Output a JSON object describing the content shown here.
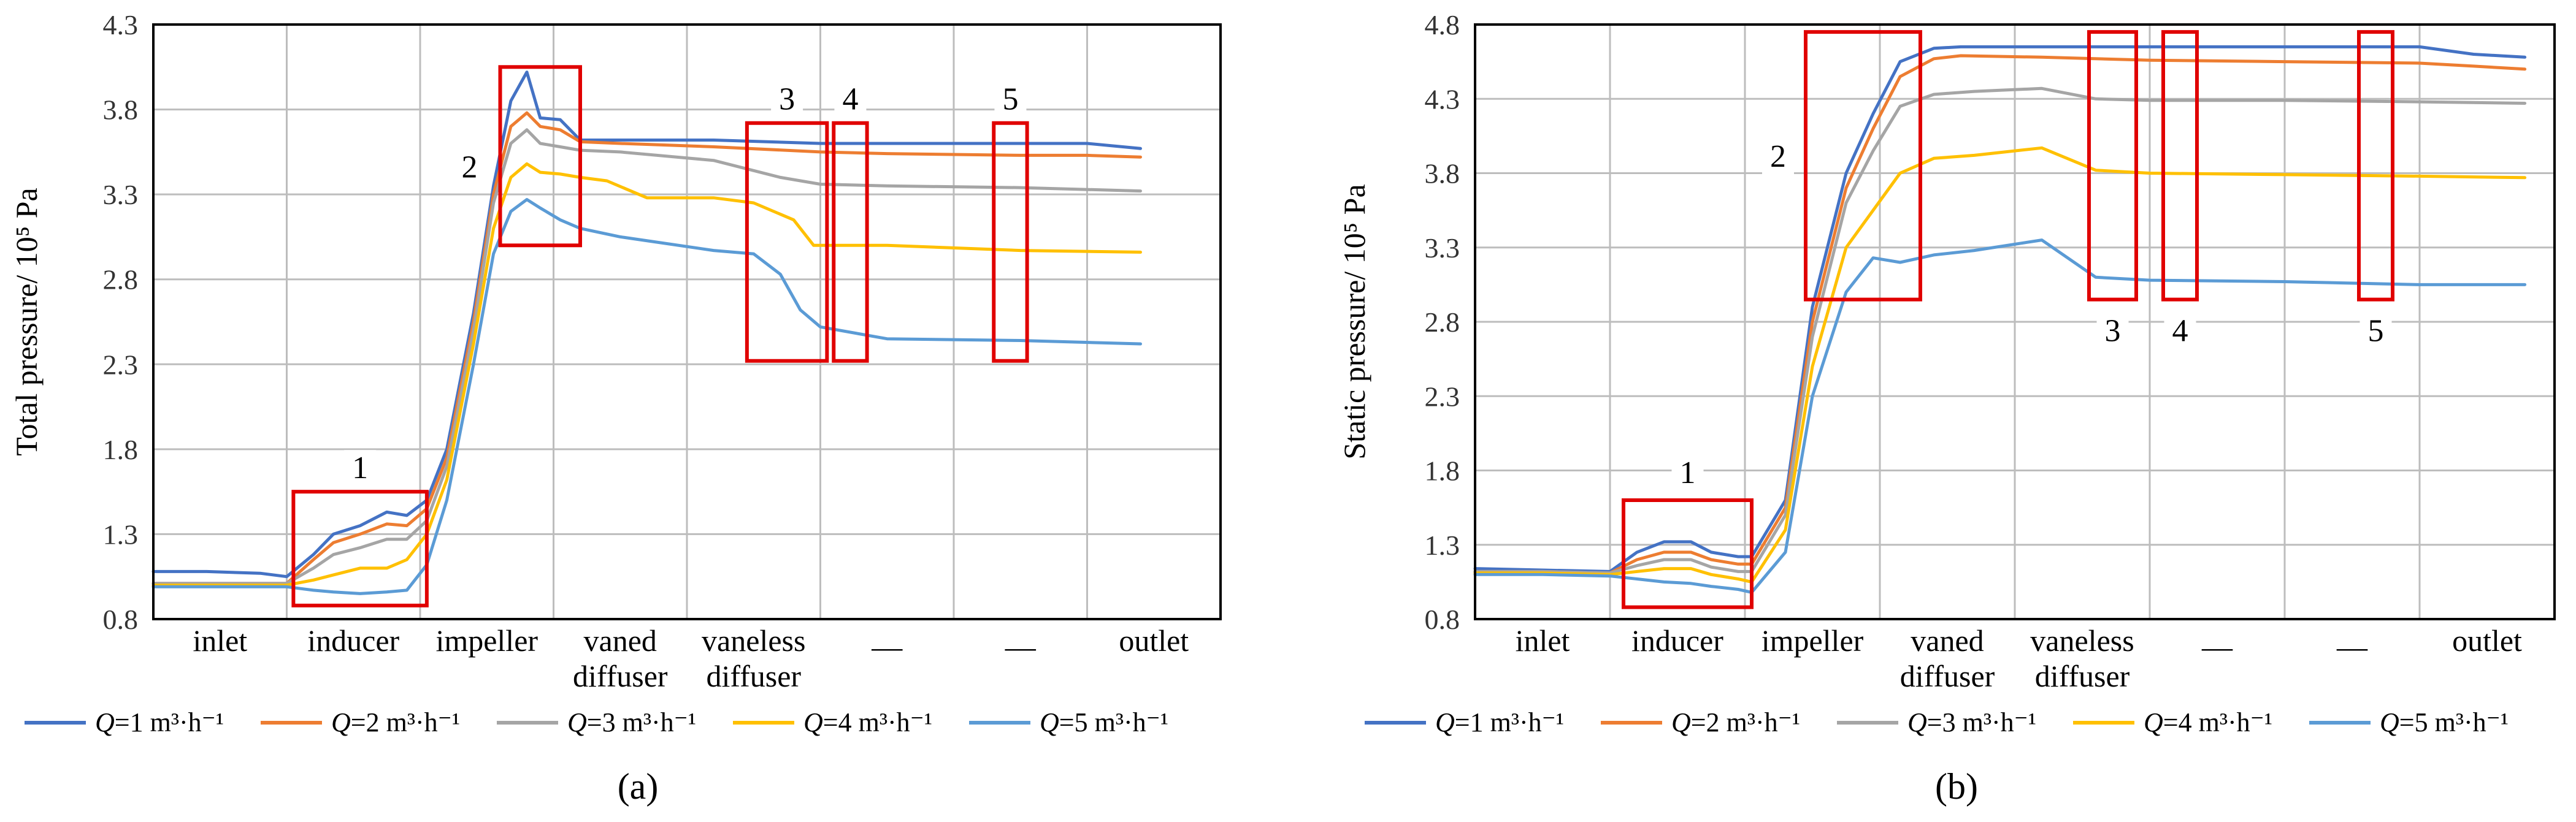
{
  "legend": {
    "entries": [
      {
        "var": "Q",
        "text": "=1 m³·h⁻¹"
      },
      {
        "var": "Q",
        "text": "=2 m³·h⁻¹"
      },
      {
        "var": "Q",
        "text": "=3 m³·h⁻¹"
      },
      {
        "var": "Q",
        "text": "=4 m³·h⁻¹"
      },
      {
        "var": "Q",
        "text": "=5 m³·h⁻¹"
      }
    ]
  },
  "chart_data": [
    {
      "type": "line",
      "panel_label": "(a)",
      "ylabel": "Total pressure/ 10⁵ Pa",
      "ylim": [
        0.8,
        4.3
      ],
      "yticks": [
        0.8,
        1.3,
        1.8,
        2.3,
        2.8,
        3.3,
        3.8,
        4.3
      ],
      "categories": [
        {
          "line1": "inlet",
          "line2": ""
        },
        {
          "line1": "inducer",
          "line2": ""
        },
        {
          "line1": "impeller",
          "line2": ""
        },
        {
          "line1": "vaned",
          "line2": "diffuser"
        },
        {
          "line1": "vaneless",
          "line2": "diffuser"
        },
        {
          "line1": "—",
          "line2": ""
        },
        {
          "line1": "—",
          "line2": ""
        },
        {
          "line1": "outlet",
          "line2": ""
        }
      ],
      "annotations": [
        {
          "label": "1",
          "x0": 1.05,
          "x1": 2.05,
          "y0": 0.88,
          "y1": 1.55
        },
        {
          "label": "2",
          "x0": 2.6,
          "x1": 3.2,
          "y0": 3.0,
          "y1": 4.05
        },
        {
          "label": "3",
          "x0": 4.45,
          "x1": 5.05,
          "y0": 2.32,
          "y1": 3.72
        },
        {
          "label": "4",
          "x0": 5.1,
          "x1": 5.35,
          "y0": 2.32,
          "y1": 3.72
        },
        {
          "label": "5",
          "x0": 6.3,
          "x1": 6.55,
          "y0": 2.32,
          "y1": 3.72
        }
      ],
      "series": [
        {
          "name": "Q=1 m³·h⁻¹",
          "color": "#4472c4",
          "x": [
            0,
            0.4,
            0.8,
            1.0,
            1.2,
            1.35,
            1.55,
            1.75,
            1.9,
            2.05,
            2.2,
            2.4,
            2.55,
            2.68,
            2.8,
            2.9,
            3.05,
            3.2,
            3.5,
            4.2,
            5.0,
            5.5,
            6.5,
            7.0,
            7.4
          ],
          "y": [
            1.08,
            1.08,
            1.07,
            1.05,
            1.18,
            1.3,
            1.35,
            1.43,
            1.41,
            1.5,
            1.8,
            2.6,
            3.35,
            3.85,
            4.02,
            3.75,
            3.74,
            3.62,
            3.62,
            3.62,
            3.6,
            3.6,
            3.6,
            3.6,
            3.57
          ]
        },
        {
          "name": "Q=2 m³·h⁻¹",
          "color": "#ed7d31",
          "x": [
            0,
            0.4,
            0.8,
            1.0,
            1.2,
            1.35,
            1.55,
            1.75,
            1.9,
            2.05,
            2.2,
            2.4,
            2.55,
            2.68,
            2.8,
            2.9,
            3.05,
            3.2,
            3.5,
            4.2,
            5.0,
            5.5,
            6.5,
            7.0,
            7.4
          ],
          "y": [
            1.01,
            1.01,
            1.01,
            1.01,
            1.15,
            1.25,
            1.3,
            1.36,
            1.35,
            1.45,
            1.75,
            2.55,
            3.3,
            3.7,
            3.78,
            3.7,
            3.68,
            3.61,
            3.6,
            3.58,
            3.55,
            3.54,
            3.53,
            3.53,
            3.52
          ]
        },
        {
          "name": "Q=3 m³·h⁻¹",
          "color": "#a5a5a5",
          "x": [
            0,
            0.4,
            0.8,
            1.0,
            1.2,
            1.35,
            1.55,
            1.75,
            1.9,
            2.05,
            2.2,
            2.4,
            2.55,
            2.68,
            2.8,
            2.9,
            3.05,
            3.2,
            3.5,
            4.2,
            4.7,
            5.0,
            5.5,
            6.5,
            7.4
          ],
          "y": [
            1.01,
            1.01,
            1.01,
            1.01,
            1.1,
            1.18,
            1.22,
            1.27,
            1.27,
            1.38,
            1.7,
            2.5,
            3.25,
            3.6,
            3.68,
            3.6,
            3.58,
            3.56,
            3.55,
            3.5,
            3.4,
            3.36,
            3.35,
            3.34,
            3.32
          ]
        },
        {
          "name": "Q=4 m³·h⁻¹",
          "color": "#ffc000",
          "x": [
            0,
            0.4,
            0.8,
            1.0,
            1.2,
            1.35,
            1.55,
            1.75,
            1.9,
            2.05,
            2.2,
            2.4,
            2.55,
            2.68,
            2.8,
            2.9,
            3.05,
            3.2,
            3.4,
            3.7,
            4.2,
            4.5,
            4.8,
            4.95,
            5.5,
            6.5,
            7.4
          ],
          "y": [
            1.0,
            1.0,
            1.0,
            1.0,
            1.03,
            1.06,
            1.1,
            1.1,
            1.15,
            1.3,
            1.62,
            2.42,
            3.1,
            3.4,
            3.48,
            3.43,
            3.42,
            3.4,
            3.38,
            3.28,
            3.28,
            3.25,
            3.15,
            3.0,
            3.0,
            2.97,
            2.96
          ]
        },
        {
          "name": "Q=5 m³·h⁻¹",
          "color": "#5b9bd5",
          "x": [
            0,
            0.4,
            0.8,
            1.0,
            1.2,
            1.35,
            1.55,
            1.75,
            1.9,
            2.05,
            2.2,
            2.4,
            2.55,
            2.68,
            2.8,
            2.9,
            3.05,
            3.2,
            3.5,
            4.2,
            4.5,
            4.7,
            4.85,
            5.0,
            5.5,
            6.5,
            7.4
          ],
          "y": [
            0.99,
            0.99,
            0.99,
            0.99,
            0.97,
            0.96,
            0.95,
            0.96,
            0.97,
            1.12,
            1.5,
            2.3,
            2.95,
            3.2,
            3.27,
            3.22,
            3.15,
            3.1,
            3.05,
            2.97,
            2.95,
            2.83,
            2.62,
            2.52,
            2.45,
            2.44,
            2.42
          ]
        }
      ]
    },
    {
      "type": "line",
      "panel_label": "(b)",
      "ylabel": "Static pressure/ 10⁵ Pa",
      "ylim": [
        0.8,
        4.8
      ],
      "yticks": [
        0.8,
        1.3,
        1.8,
        2.3,
        2.8,
        3.3,
        3.8,
        4.3,
        4.8
      ],
      "categories": [
        {
          "line1": "inlet",
          "line2": ""
        },
        {
          "line1": "inducer",
          "line2": ""
        },
        {
          "line1": "impeller",
          "line2": ""
        },
        {
          "line1": "vaned",
          "line2": "diffuser"
        },
        {
          "line1": "vaneless",
          "line2": "diffuser"
        },
        {
          "line1": "—",
          "line2": ""
        },
        {
          "line1": "—",
          "line2": ""
        },
        {
          "line1": "outlet",
          "line2": ""
        }
      ],
      "annotations": [
        {
          "label": "1",
          "x0": 1.1,
          "x1": 2.05,
          "y0": 0.88,
          "y1": 1.6
        },
        {
          "label": "2",
          "x0": 2.45,
          "x1": 3.3,
          "y0": 2.95,
          "y1": 4.75
        },
        {
          "label": "3",
          "x0": 4.55,
          "x1": 4.9,
          "y0": 2.95,
          "y1": 4.75
        },
        {
          "label": "4",
          "x0": 5.1,
          "x1": 5.35,
          "y0": 2.95,
          "y1": 4.75
        },
        {
          "label": "5",
          "x0": 6.55,
          "x1": 6.8,
          "y0": 2.95,
          "y1": 4.75
        }
      ],
      "series": [
        {
          "name": "Q=1 m³·h⁻¹",
          "color": "#4472c4",
          "x": [
            0,
            0.5,
            1.0,
            1.2,
            1.4,
            1.6,
            1.75,
            1.95,
            2.05,
            2.3,
            2.5,
            2.75,
            2.95,
            3.15,
            3.4,
            3.6,
            4.2,
            5.0,
            6.0,
            7.0,
            7.4,
            7.78
          ],
          "y": [
            1.14,
            1.13,
            1.12,
            1.25,
            1.32,
            1.32,
            1.25,
            1.22,
            1.22,
            1.6,
            2.9,
            3.8,
            4.2,
            4.55,
            4.64,
            4.65,
            4.65,
            4.65,
            4.65,
            4.65,
            4.6,
            4.58
          ]
        },
        {
          "name": "Q=2 m³·h⁻¹",
          "color": "#ed7d31",
          "x": [
            0,
            0.5,
            1.0,
            1.2,
            1.4,
            1.6,
            1.75,
            1.95,
            2.05,
            2.3,
            2.5,
            2.75,
            2.95,
            3.15,
            3.4,
            3.6,
            4.2,
            5.0,
            6.0,
            7.0,
            7.4,
            7.78
          ],
          "y": [
            1.12,
            1.12,
            1.11,
            1.2,
            1.25,
            1.25,
            1.2,
            1.17,
            1.17,
            1.55,
            2.8,
            3.7,
            4.1,
            4.45,
            4.57,
            4.59,
            4.58,
            4.56,
            4.55,
            4.54,
            4.52,
            4.5
          ]
        },
        {
          "name": "Q=3 m³·h⁻¹",
          "color": "#a5a5a5",
          "x": [
            0,
            0.5,
            1.0,
            1.2,
            1.4,
            1.6,
            1.75,
            1.95,
            2.05,
            2.3,
            2.5,
            2.75,
            2.95,
            3.15,
            3.4,
            3.7,
            4.2,
            4.6,
            5.0,
            6.0,
            7.0,
            7.78
          ],
          "y": [
            1.12,
            1.12,
            1.11,
            1.16,
            1.2,
            1.2,
            1.15,
            1.12,
            1.12,
            1.5,
            2.7,
            3.6,
            3.95,
            4.25,
            4.33,
            4.35,
            4.37,
            4.3,
            4.29,
            4.29,
            4.28,
            4.27
          ]
        },
        {
          "name": "Q=4 m³·h⁻¹",
          "color": "#ffc000",
          "x": [
            0,
            0.5,
            1.0,
            1.2,
            1.4,
            1.6,
            1.75,
            1.95,
            2.05,
            2.3,
            2.5,
            2.75,
            2.95,
            3.15,
            3.4,
            3.7,
            4.2,
            4.6,
            5.0,
            6.0,
            7.0,
            7.78
          ],
          "y": [
            1.11,
            1.11,
            1.1,
            1.12,
            1.14,
            1.14,
            1.1,
            1.07,
            1.05,
            1.4,
            2.5,
            3.3,
            3.55,
            3.8,
            3.9,
            3.92,
            3.97,
            3.82,
            3.8,
            3.79,
            3.78,
            3.77
          ]
        },
        {
          "name": "Q=5 m³·h⁻¹",
          "color": "#5b9bd5",
          "x": [
            0,
            0.5,
            1.0,
            1.2,
            1.4,
            1.6,
            1.75,
            1.95,
            2.05,
            2.3,
            2.5,
            2.75,
            2.95,
            3.15,
            3.4,
            3.7,
            4.2,
            4.6,
            5.0,
            6.0,
            7.0,
            7.78
          ],
          "y": [
            1.1,
            1.1,
            1.09,
            1.07,
            1.05,
            1.04,
            1.02,
            1.0,
            0.98,
            1.25,
            2.3,
            3.0,
            3.23,
            3.2,
            3.25,
            3.28,
            3.35,
            3.1,
            3.08,
            3.07,
            3.05,
            3.05
          ]
        }
      ]
    }
  ]
}
